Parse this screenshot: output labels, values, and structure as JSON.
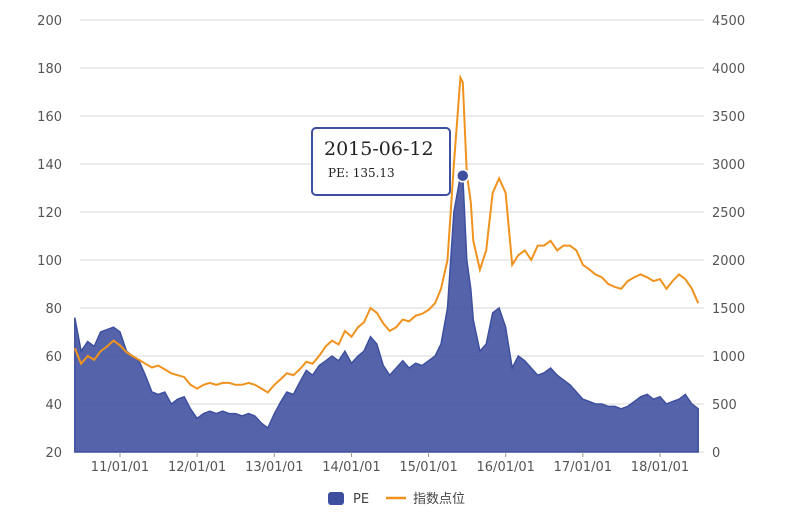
{
  "chart_data": {
    "type": "area+line",
    "x_tick_labels": [
      "11/01/01",
      "12/01/01",
      "13/01/01",
      "14/01/01",
      "15/01/01",
      "16/01/01",
      "17/01/01",
      "18/01/01"
    ],
    "y_left": {
      "min": 20,
      "max": 200,
      "ticks": [
        20,
        40,
        60,
        80,
        100,
        120,
        140,
        160,
        180,
        200
      ]
    },
    "y_right": {
      "min": 0,
      "max": 4500,
      "ticks": [
        0,
        500,
        1000,
        1500,
        2000,
        2500,
        3000,
        3500,
        4000,
        4500
      ]
    },
    "grid": true,
    "legend_position": "bottom-center",
    "series": [
      {
        "name": "PE",
        "kind": "area",
        "axis": "left",
        "color": "#3d4f9e",
        "points": [
          [
            "2010-06-01",
            76
          ],
          [
            "2010-07-01",
            62
          ],
          [
            "2010-08-01",
            66
          ],
          [
            "2010-09-01",
            64
          ],
          [
            "2010-10-01",
            70
          ],
          [
            "2010-11-01",
            71
          ],
          [
            "2010-12-01",
            72
          ],
          [
            "2011-01-01",
            70
          ],
          [
            "2011-02-01",
            62
          ],
          [
            "2011-03-01",
            60
          ],
          [
            "2011-04-01",
            58
          ],
          [
            "2011-05-01",
            52
          ],
          [
            "2011-06-01",
            45
          ],
          [
            "2011-07-01",
            44
          ],
          [
            "2011-08-01",
            45
          ],
          [
            "2011-09-01",
            40
          ],
          [
            "2011-10-01",
            42
          ],
          [
            "2011-11-01",
            43
          ],
          [
            "2011-12-01",
            38
          ],
          [
            "2012-01-01",
            34
          ],
          [
            "2012-02-01",
            36
          ],
          [
            "2012-03-01",
            37
          ],
          [
            "2012-04-01",
            36
          ],
          [
            "2012-05-01",
            37
          ],
          [
            "2012-06-01",
            36
          ],
          [
            "2012-07-01",
            36
          ],
          [
            "2012-08-01",
            35
          ],
          [
            "2012-09-01",
            36
          ],
          [
            "2012-10-01",
            35
          ],
          [
            "2012-11-01",
            32
          ],
          [
            "2012-12-01",
            30
          ],
          [
            "2013-01-01",
            36
          ],
          [
            "2013-02-01",
            41
          ],
          [
            "2013-03-01",
            45
          ],
          [
            "2013-04-01",
            44
          ],
          [
            "2013-05-01",
            49
          ],
          [
            "2013-06-01",
            54
          ],
          [
            "2013-07-01",
            52
          ],
          [
            "2013-08-01",
            56
          ],
          [
            "2013-09-01",
            58
          ],
          [
            "2013-10-01",
            60
          ],
          [
            "2013-11-01",
            58
          ],
          [
            "2013-12-01",
            62
          ],
          [
            "2014-01-01",
            57
          ],
          [
            "2014-02-01",
            60
          ],
          [
            "2014-03-01",
            62
          ],
          [
            "2014-04-01",
            68
          ],
          [
            "2014-05-01",
            65
          ],
          [
            "2014-06-01",
            56
          ],
          [
            "2014-07-01",
            52
          ],
          [
            "2014-08-01",
            55
          ],
          [
            "2014-09-01",
            58
          ],
          [
            "2014-10-01",
            55
          ],
          [
            "2014-11-01",
            57
          ],
          [
            "2014-12-01",
            56
          ],
          [
            "2015-01-01",
            58
          ],
          [
            "2015-02-01",
            60
          ],
          [
            "2015-03-01",
            65
          ],
          [
            "2015-04-01",
            80
          ],
          [
            "2015-05-01",
            120
          ],
          [
            "2015-06-01",
            135
          ],
          [
            "2015-06-12",
            135.13
          ],
          [
            "2015-07-01",
            100
          ],
          [
            "2015-07-20",
            88
          ],
          [
            "2015-08-01",
            75
          ],
          [
            "2015-09-01",
            62
          ],
          [
            "2015-10-01",
            65
          ],
          [
            "2015-11-01",
            78
          ],
          [
            "2015-12-01",
            80
          ],
          [
            "2016-01-01",
            72
          ],
          [
            "2016-02-01",
            55
          ],
          [
            "2016-03-01",
            60
          ],
          [
            "2016-04-01",
            58
          ],
          [
            "2016-05-01",
            55
          ],
          [
            "2016-06-01",
            52
          ],
          [
            "2016-07-01",
            53
          ],
          [
            "2016-08-01",
            55
          ],
          [
            "2016-09-01",
            52
          ],
          [
            "2016-10-01",
            50
          ],
          [
            "2016-11-01",
            48
          ],
          [
            "2016-12-01",
            45
          ],
          [
            "2017-01-01",
            42
          ],
          [
            "2017-02-01",
            41
          ],
          [
            "2017-03-01",
            40
          ],
          [
            "2017-04-01",
            40
          ],
          [
            "2017-05-01",
            39
          ],
          [
            "2017-06-01",
            39
          ],
          [
            "2017-07-01",
            38
          ],
          [
            "2017-08-01",
            39
          ],
          [
            "2017-09-01",
            41
          ],
          [
            "2017-10-01",
            43
          ],
          [
            "2017-11-01",
            44
          ],
          [
            "2017-12-01",
            42
          ],
          [
            "2018-01-01",
            43
          ],
          [
            "2018-02-01",
            40
          ],
          [
            "2018-03-01",
            41
          ],
          [
            "2018-04-01",
            42
          ],
          [
            "2018-05-01",
            44
          ],
          [
            "2018-06-01",
            40
          ],
          [
            "2018-07-01",
            38
          ]
        ]
      },
      {
        "name": "指数点位",
        "kind": "line",
        "axis": "right",
        "color": "#f0921e",
        "points": [
          [
            "2010-06-01",
            1080
          ],
          [
            "2010-07-01",
            920
          ],
          [
            "2010-08-01",
            1000
          ],
          [
            "2010-09-01",
            960
          ],
          [
            "2010-10-01",
            1050
          ],
          [
            "2010-11-01",
            1100
          ],
          [
            "2010-12-01",
            1160
          ],
          [
            "2011-01-01",
            1110
          ],
          [
            "2011-02-01",
            1040
          ],
          [
            "2011-03-01",
            1000
          ],
          [
            "2011-04-01",
            960
          ],
          [
            "2011-05-01",
            920
          ],
          [
            "2011-06-01",
            880
          ],
          [
            "2011-07-01",
            900
          ],
          [
            "2011-08-01",
            860
          ],
          [
            "2011-09-01",
            820
          ],
          [
            "2011-10-01",
            800
          ],
          [
            "2011-11-01",
            780
          ],
          [
            "2011-12-01",
            700
          ],
          [
            "2012-01-01",
            660
          ],
          [
            "2012-02-01",
            700
          ],
          [
            "2012-03-01",
            720
          ],
          [
            "2012-04-01",
            700
          ],
          [
            "2012-05-01",
            720
          ],
          [
            "2012-06-01",
            720
          ],
          [
            "2012-07-01",
            700
          ],
          [
            "2012-08-01",
            700
          ],
          [
            "2012-09-01",
            720
          ],
          [
            "2012-10-01",
            700
          ],
          [
            "2012-11-01",
            660
          ],
          [
            "2012-12-01",
            620
          ],
          [
            "2013-01-01",
            700
          ],
          [
            "2013-02-01",
            760
          ],
          [
            "2013-03-01",
            820
          ],
          [
            "2013-04-01",
            800
          ],
          [
            "2013-05-01",
            860
          ],
          [
            "2013-06-01",
            940
          ],
          [
            "2013-07-01",
            920
          ],
          [
            "2013-08-01",
            1000
          ],
          [
            "2013-09-01",
            1100
          ],
          [
            "2013-10-01",
            1160
          ],
          [
            "2013-11-01",
            1120
          ],
          [
            "2013-12-01",
            1260
          ],
          [
            "2014-01-01",
            1200
          ],
          [
            "2014-02-01",
            1300
          ],
          [
            "2014-03-01",
            1350
          ],
          [
            "2014-04-01",
            1500
          ],
          [
            "2014-05-01",
            1450
          ],
          [
            "2014-06-01",
            1340
          ],
          [
            "2014-07-01",
            1260
          ],
          [
            "2014-08-01",
            1300
          ],
          [
            "2014-09-01",
            1380
          ],
          [
            "2014-10-01",
            1360
          ],
          [
            "2014-11-01",
            1420
          ],
          [
            "2014-12-01",
            1440
          ],
          [
            "2015-01-01",
            1480
          ],
          [
            "2015-02-01",
            1550
          ],
          [
            "2015-03-01",
            1700
          ],
          [
            "2015-04-01",
            2000
          ],
          [
            "2015-05-01",
            3000
          ],
          [
            "2015-06-01",
            3900
          ],
          [
            "2015-06-12",
            3850
          ],
          [
            "2015-07-01",
            2900
          ],
          [
            "2015-07-20",
            2600
          ],
          [
            "2015-08-01",
            2200
          ],
          [
            "2015-09-01",
            1900
          ],
          [
            "2015-10-01",
            2100
          ],
          [
            "2015-11-01",
            2700
          ],
          [
            "2015-12-01",
            2850
          ],
          [
            "2016-01-01",
            2700
          ],
          [
            "2016-02-01",
            1950
          ],
          [
            "2016-03-01",
            2050
          ],
          [
            "2016-04-01",
            2100
          ],
          [
            "2016-05-01",
            2000
          ],
          [
            "2016-06-01",
            2150
          ],
          [
            "2016-07-01",
            2150
          ],
          [
            "2016-08-01",
            2200
          ],
          [
            "2016-09-01",
            2100
          ],
          [
            "2016-10-01",
            2150
          ],
          [
            "2016-11-01",
            2150
          ],
          [
            "2016-12-01",
            2100
          ],
          [
            "2017-01-01",
            1950
          ],
          [
            "2017-02-01",
            1900
          ],
          [
            "2017-03-01",
            1850
          ],
          [
            "2017-04-01",
            1820
          ],
          [
            "2017-05-01",
            1750
          ],
          [
            "2017-06-01",
            1720
          ],
          [
            "2017-07-01",
            1700
          ],
          [
            "2017-08-01",
            1780
          ],
          [
            "2017-09-01",
            1820
          ],
          [
            "2017-10-01",
            1850
          ],
          [
            "2017-11-01",
            1820
          ],
          [
            "2017-12-01",
            1780
          ],
          [
            "2018-01-01",
            1800
          ],
          [
            "2018-02-01",
            1700
          ],
          [
            "2018-03-01",
            1780
          ],
          [
            "2018-04-01",
            1850
          ],
          [
            "2018-05-01",
            1800
          ],
          [
            "2018-06-01",
            1700
          ],
          [
            "2018-07-01",
            1550
          ]
        ]
      }
    ],
    "tooltip": {
      "date": "2015-06-12",
      "value_text": "PE: 135.13",
      "point": [
        "2015-06-12",
        135.13
      ]
    }
  },
  "legend": {
    "pe_label": "PE",
    "index_label": "指数点位"
  },
  "colors": {
    "pe": "#3d4f9e",
    "index": "#f0921e",
    "grid": "#d9d9d9",
    "tooltip_border": "#3d4f9e"
  }
}
